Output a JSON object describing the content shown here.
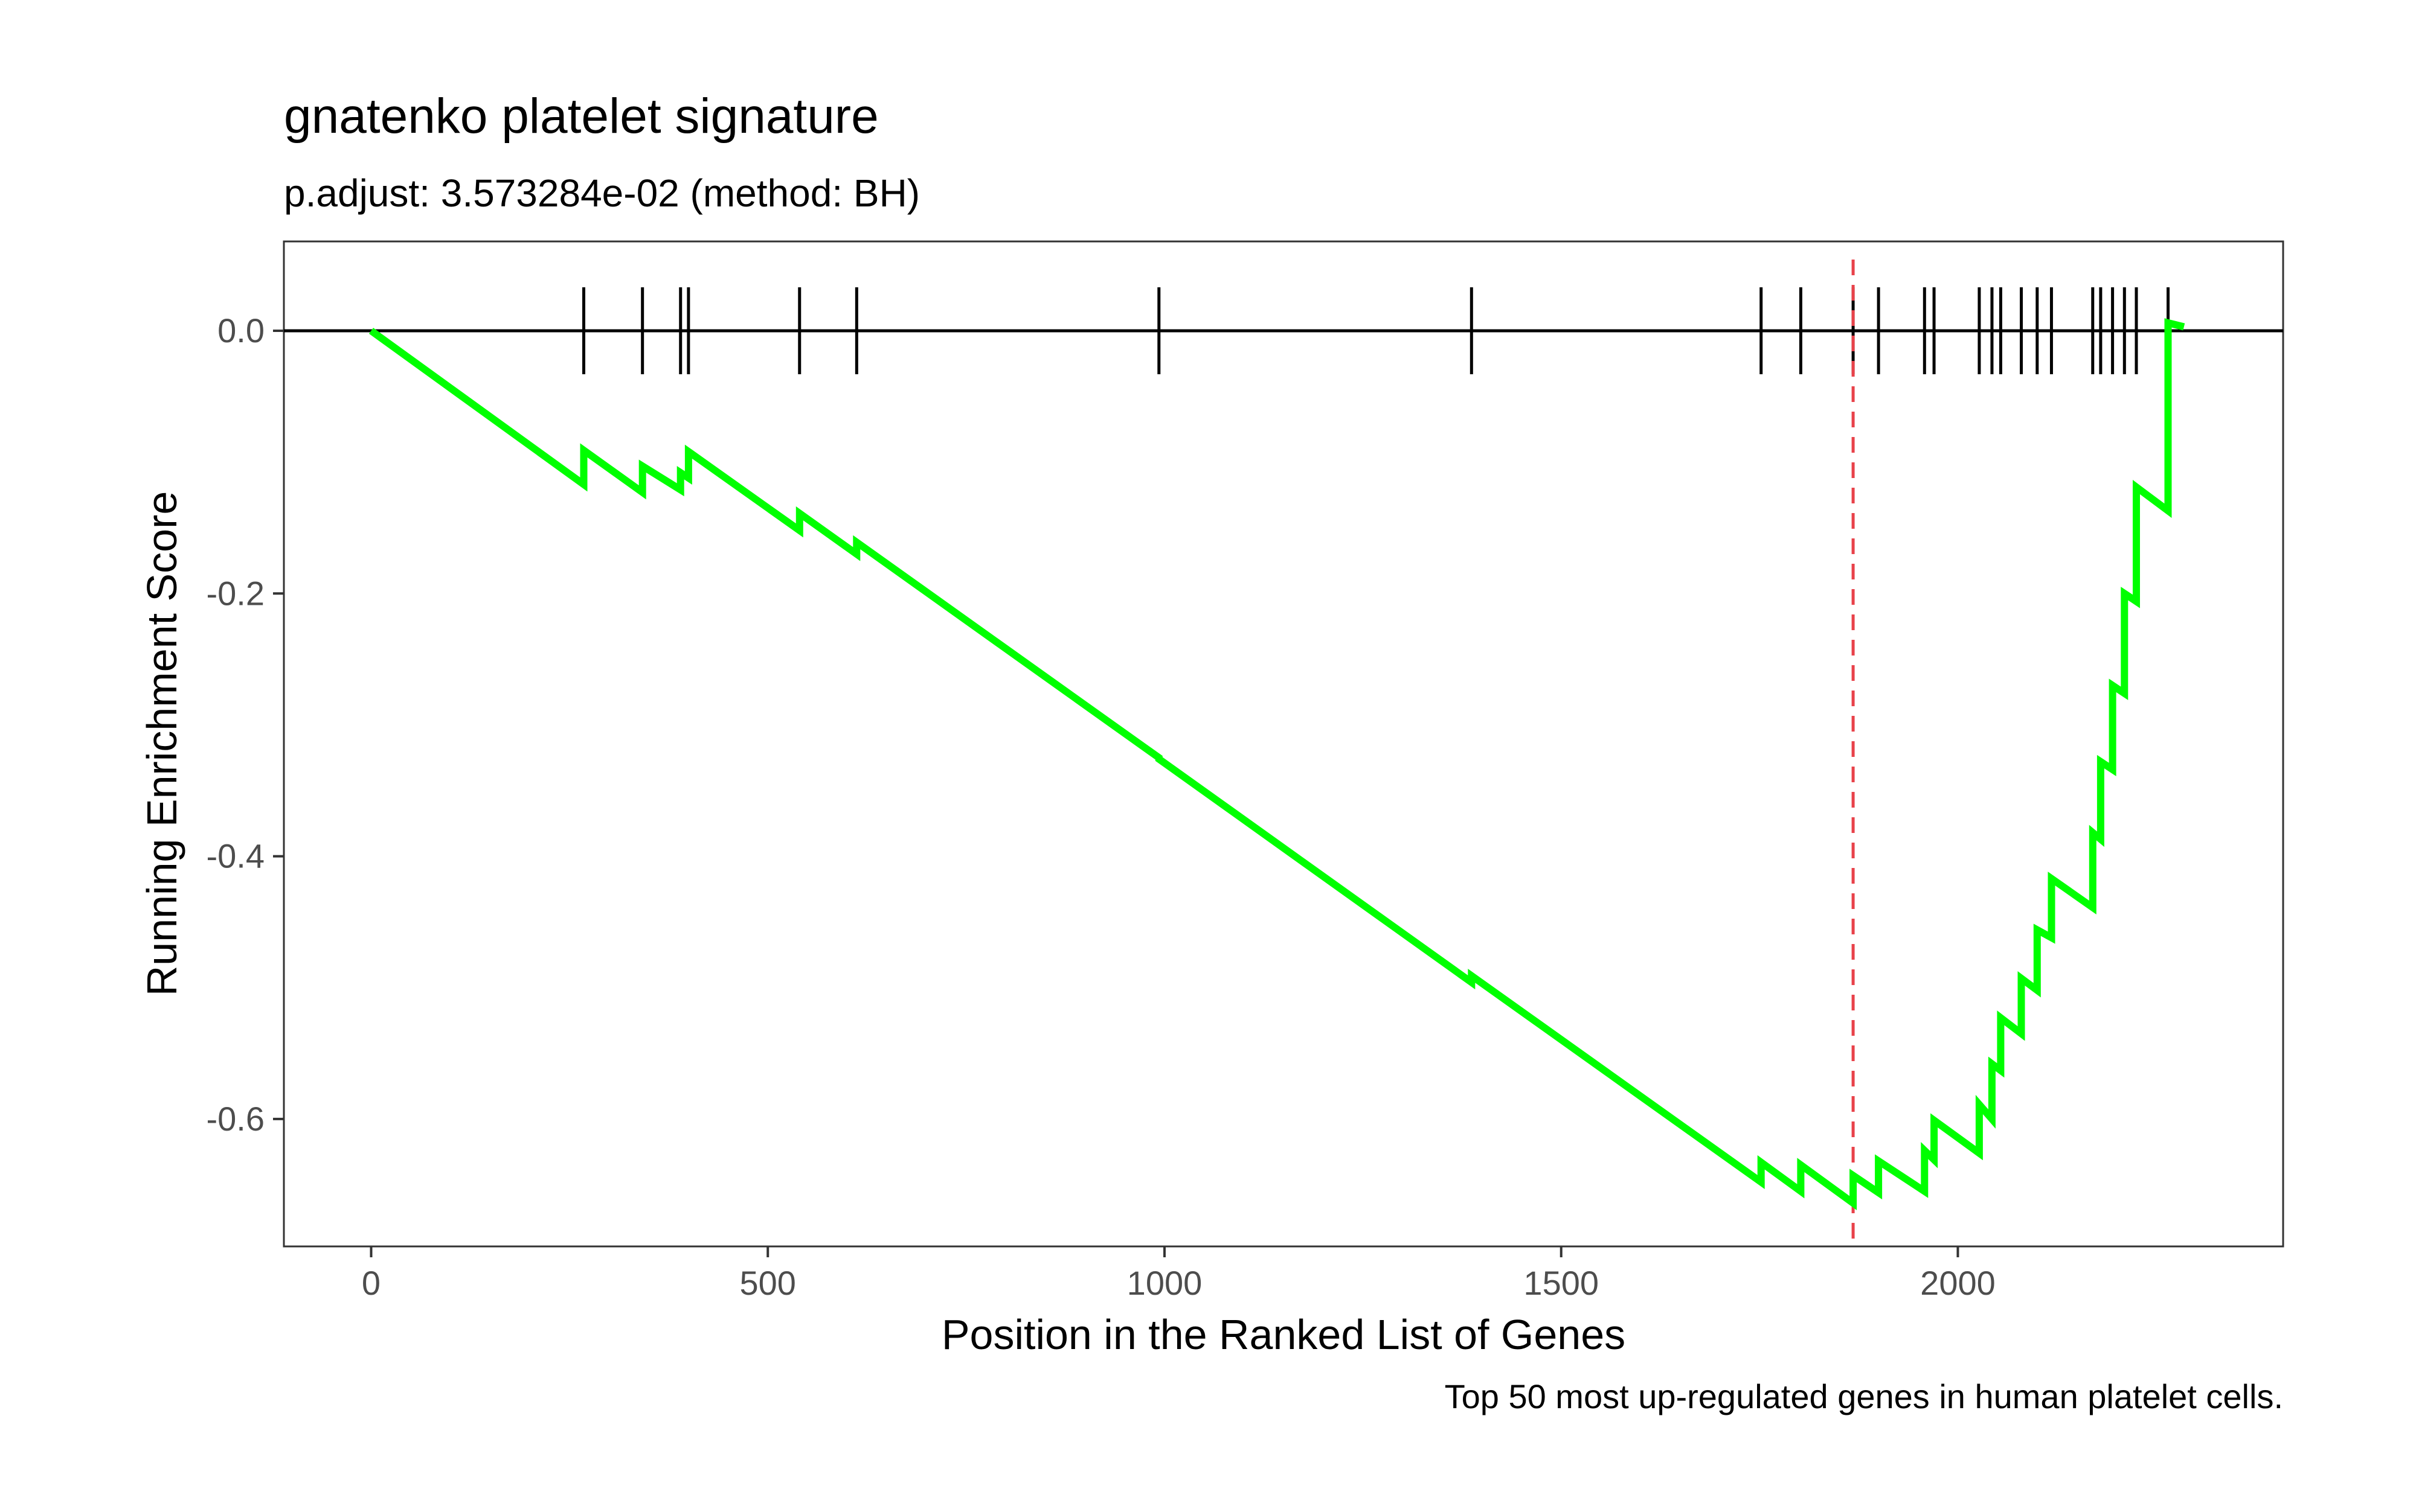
{
  "chart_data": {
    "type": "line",
    "title": "gnatenko platelet signature",
    "subtitle": "p.adjust: 3.573284e-02 (method: BH)",
    "xlabel": "Position in the Ranked List of Genes",
    "ylabel": "Running Enrichment Score",
    "caption": "Top 50 most up-regulated genes in human platelet cells.",
    "xlim": [
      -110,
      2410
    ],
    "ylim": [
      -0.697,
      0.068
    ],
    "x_ticks": [
      0,
      500,
      1000,
      1500,
      2000
    ],
    "x_tick_labels": [
      "0",
      "500",
      "1000",
      "1500",
      "2000"
    ],
    "y_ticks": [
      0.0,
      -0.2,
      -0.4,
      -0.6
    ],
    "y_tick_labels": [
      "0.0",
      "-0.2",
      "-0.4",
      "-0.6"
    ],
    "grid": false,
    "zero_line": 0,
    "series": [
      {
        "color": "#00ff00",
        "x": [
          0,
          268,
          268,
          342,
          342,
          390,
          390,
          400,
          400,
          540,
          540,
          612,
          612,
          993,
          993,
          1387,
          1387,
          1752,
          1752,
          1802,
          1802,
          1868,
          1868,
          1900,
          1900,
          1958,
          1958,
          1970,
          1970,
          2027,
          2027,
          2043,
          2043,
          2054,
          2054,
          2080,
          2080,
          2100,
          2100,
          2118,
          2118,
          2170,
          2170,
          2180,
          2180,
          2195,
          2195,
          2210,
          2210,
          2225,
          2225,
          2265,
          2265,
          2285
        ],
        "y": [
          0.0,
          -0.117,
          -0.091,
          -0.123,
          -0.103,
          -0.121,
          -0.108,
          -0.112,
          -0.092,
          -0.152,
          -0.139,
          -0.17,
          -0.161,
          -0.325,
          -0.326,
          -0.496,
          -0.491,
          -0.648,
          -0.633,
          -0.655,
          -0.635,
          -0.664,
          -0.643,
          -0.656,
          -0.632,
          -0.655,
          -0.624,
          -0.631,
          -0.601,
          -0.626,
          -0.589,
          -0.6,
          -0.558,
          -0.563,
          -0.523,
          -0.535,
          -0.493,
          -0.502,
          -0.456,
          -0.462,
          -0.417,
          -0.439,
          -0.382,
          -0.387,
          -0.328,
          -0.334,
          -0.27,
          -0.276,
          -0.2,
          -0.206,
          -0.119,
          -0.137,
          0.006,
          0.003
        ]
      }
    ],
    "hit_positions": [
      268,
      342,
      390,
      400,
      540,
      612,
      993,
      1387,
      1752,
      1802,
      1868,
      1900,
      1958,
      1970,
      2027,
      2043,
      2054,
      2080,
      2100,
      2118,
      2170,
      2180,
      2195,
      2210,
      2225,
      2265
    ],
    "reference_line": {
      "x": 1868,
      "color": "#e8424a",
      "style": "dashed"
    },
    "colors": {
      "line": "#00ff00",
      "hits": "#000000",
      "reference": "#e8424a",
      "panel_border": "#333333"
    }
  }
}
